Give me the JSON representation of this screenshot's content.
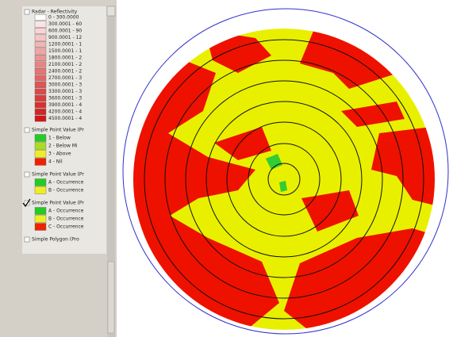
{
  "toc": {
    "layers": [
      {
        "name": "Radar - Reflectivity",
        "checked": false,
        "classes": [
          {
            "label": "0 - 300.0000",
            "color": "#ffffff"
          },
          {
            "label": "300.0001 - 60",
            "color": "#fbe4e4"
          },
          {
            "label": "600.0001 - 90",
            "color": "#f8d4d4"
          },
          {
            "label": "900.0001 - 12",
            "color": "#f5c4c4"
          },
          {
            "label": "1200.0001 - 1",
            "color": "#f2b4b4"
          },
          {
            "label": "1500.0001 - 1",
            "color": "#efa4a4"
          },
          {
            "label": "1800.0001 - 2",
            "color": "#ec9494"
          },
          {
            "label": "2100.0001 - 2",
            "color": "#e98484"
          },
          {
            "label": "2400.0001 - 2",
            "color": "#e67474"
          },
          {
            "label": "2700.0001 - 3",
            "color": "#e36464"
          },
          {
            "label": "3000.0001 - 3",
            "color": "#e05454"
          },
          {
            "label": "3300.0001 - 3",
            "color": "#dd4848"
          },
          {
            "label": "3600.0001 - 3",
            "color": "#da3c3c"
          },
          {
            "label": "3900.0001 - 4",
            "color": "#d73030"
          },
          {
            "label": "4200.0001 - 4",
            "color": "#d42424"
          },
          {
            "label": "4500.0001 - 4",
            "color": "#d11818"
          }
        ]
      },
      {
        "name": "Simple Point Value (Pr",
        "checked": false,
        "classes": [
          {
            "label": "1 - Below",
            "color": "#22cc22"
          },
          {
            "label": "2 - Below Mi",
            "color": "#aadd22"
          },
          {
            "label": "3 - Above",
            "color": "#eeee22"
          },
          {
            "label": "4 - Nil",
            "color": "#ee2200"
          }
        ]
      },
      {
        "name": "Simple Point Value (Pr",
        "checked": false,
        "classes": [
          {
            "label": "A - Occurrence",
            "color": "#22cc22"
          },
          {
            "label": "B - Occurrence",
            "color": "#eeee22"
          }
        ]
      },
      {
        "name": "Simple Point Value (Pr",
        "checked": true,
        "classes": [
          {
            "label": "A - Occurrence",
            "color": "#22cc22"
          },
          {
            "label": "B - Occurrence",
            "color": "#eeee22"
          },
          {
            "label": "C - Occurrence",
            "color": "#ee2200"
          }
        ]
      },
      {
        "name": "Simple Polygon (Pro",
        "checked": false,
        "classes": []
      }
    ]
  }
}
